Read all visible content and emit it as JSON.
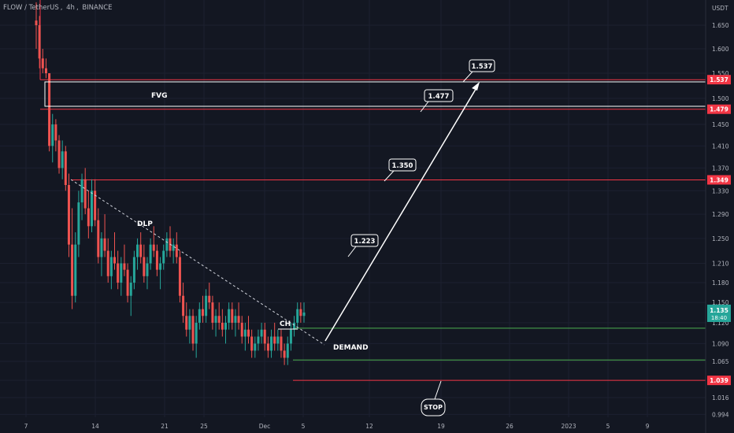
{
  "header": {
    "pair": "FLOW / TetherUS",
    "interval": "4h",
    "exchange": "BINANCE",
    "currency": "USDT"
  },
  "colors": {
    "background": "#131722",
    "up": "#26a69a",
    "down": "#ef5350",
    "grid": "#1c2030",
    "axis_text": "#b2b5be",
    "level_red": "#f23645",
    "level_green": "#4caf50",
    "drawing": "#ffffff"
  },
  "chart_data": {
    "type": "candlestick",
    "title": "FLOW / TetherUS, 4h, BINANCE",
    "y_axis_unit": "USDT",
    "y_scale": "log",
    "ylim": [
      0.994,
      1.69
    ],
    "y_ticks": [
      "1.650",
      "1.600",
      "1.550",
      "1.500",
      "1.450",
      "1.410",
      "1.370",
      "1.330",
      "1.290",
      "1.250",
      "1.210",
      "1.180",
      "1.150",
      "1.120",
      "1.090",
      "1.065",
      "1.039",
      "1.016",
      "0.994"
    ],
    "x_ticks": [
      "7",
      "14",
      "21",
      "25",
      "Dec",
      "5",
      "12",
      "19",
      "26",
      "2023",
      "5",
      "9"
    ],
    "price_tags": [
      {
        "label": "1.537",
        "value": 1.537,
        "color": "#f23645"
      },
      {
        "label": "1.479",
        "value": 1.479,
        "color": "#f23645"
      },
      {
        "label": "1.349",
        "value": 1.349,
        "color": "#f23645"
      },
      {
        "label": "1.039",
        "value": 1.039,
        "color": "#f23645"
      }
    ],
    "current_price": {
      "label": "1.135",
      "countdown": "18:40"
    },
    "levels": [
      {
        "name": "target-1.537",
        "value": 1.537,
        "color": "#f23645"
      },
      {
        "name": "target-1.479",
        "value": 1.479,
        "color": "#f23645"
      },
      {
        "name": "target-1.349",
        "value": 1.349,
        "color": "#f23645"
      },
      {
        "name": "demand-top",
        "value": 1.112,
        "color": "#4caf50"
      },
      {
        "name": "demand-bottom",
        "value": 1.067,
        "color": "#4caf50"
      },
      {
        "name": "stop",
        "value": 1.039,
        "color": "#f23645"
      }
    ],
    "annotations": {
      "fvg": "FVG",
      "dlp": "DLP",
      "ch": "CH",
      "demand": "DEMAND",
      "stop": "STOP",
      "callouts": [
        "1.537",
        "1.477",
        "1.350",
        "1.223"
      ]
    },
    "candles_note": "",
    "candles": [
      [
        1.66,
        1.7,
        1.6,
        1.65
      ],
      [
        1.65,
        1.67,
        1.56,
        1.58
      ],
      [
        1.58,
        1.6,
        1.55,
        1.56
      ],
      [
        1.56,
        1.58,
        1.54,
        1.55
      ],
      [
        1.55,
        1.55,
        1.4,
        1.41
      ],
      [
        1.41,
        1.47,
        1.38,
        1.45
      ],
      [
        1.45,
        1.46,
        1.4,
        1.42
      ],
      [
        1.42,
        1.43,
        1.36,
        1.37
      ],
      [
        1.37,
        1.42,
        1.35,
        1.4
      ],
      [
        1.4,
        1.41,
        1.33,
        1.34
      ],
      [
        1.34,
        1.36,
        1.22,
        1.24
      ],
      [
        1.24,
        1.3,
        1.14,
        1.16
      ],
      [
        1.16,
        1.26,
        1.15,
        1.24
      ],
      [
        1.24,
        1.33,
        1.22,
        1.31
      ],
      [
        1.31,
        1.36,
        1.28,
        1.35
      ],
      [
        1.35,
        1.37,
        1.29,
        1.3
      ],
      [
        1.3,
        1.33,
        1.25,
        1.27
      ],
      [
        1.27,
        1.35,
        1.26,
        1.33
      ],
      [
        1.33,
        1.35,
        1.27,
        1.28
      ],
      [
        1.28,
        1.3,
        1.21,
        1.22
      ],
      [
        1.22,
        1.26,
        1.19,
        1.25
      ],
      [
        1.25,
        1.29,
        1.22,
        1.23
      ],
      [
        1.23,
        1.25,
        1.18,
        1.19
      ],
      [
        1.19,
        1.23,
        1.17,
        1.22
      ],
      [
        1.22,
        1.26,
        1.2,
        1.21
      ],
      [
        1.21,
        1.23,
        1.17,
        1.18
      ],
      [
        1.18,
        1.22,
        1.16,
        1.21
      ],
      [
        1.21,
        1.24,
        1.19,
        1.2
      ],
      [
        1.2,
        1.21,
        1.15,
        1.16
      ],
      [
        1.16,
        1.19,
        1.13,
        1.18
      ],
      [
        1.18,
        1.23,
        1.17,
        1.22
      ],
      [
        1.22,
        1.25,
        1.2,
        1.24
      ],
      [
        1.24,
        1.26,
        1.21,
        1.22
      ],
      [
        1.22,
        1.24,
        1.18,
        1.19
      ],
      [
        1.19,
        1.22,
        1.17,
        1.21
      ],
      [
        1.21,
        1.25,
        1.2,
        1.24
      ],
      [
        1.24,
        1.27,
        1.22,
        1.23
      ],
      [
        1.23,
        1.24,
        1.19,
        1.2
      ],
      [
        1.2,
        1.22,
        1.17,
        1.21
      ],
      [
        1.21,
        1.24,
        1.2,
        1.23
      ],
      [
        1.23,
        1.26,
        1.22,
        1.25
      ],
      [
        1.25,
        1.27,
        1.22,
        1.23
      ],
      [
        1.23,
        1.25,
        1.21,
        1.24
      ],
      [
        1.24,
        1.26,
        1.21,
        1.22
      ],
      [
        1.22,
        1.23,
        1.15,
        1.16
      ],
      [
        1.16,
        1.18,
        1.12,
        1.13
      ],
      [
        1.13,
        1.15,
        1.1,
        1.11
      ],
      [
        1.11,
        1.14,
        1.09,
        1.13
      ],
      [
        1.13,
        1.14,
        1.08,
        1.09
      ],
      [
        1.09,
        1.13,
        1.07,
        1.12
      ],
      [
        1.12,
        1.15,
        1.11,
        1.14
      ],
      [
        1.14,
        1.16,
        1.12,
        1.13
      ],
      [
        1.13,
        1.17,
        1.12,
        1.16
      ],
      [
        1.16,
        1.18,
        1.14,
        1.15
      ],
      [
        1.15,
        1.16,
        1.11,
        1.12
      ],
      [
        1.12,
        1.14,
        1.1,
        1.13
      ],
      [
        1.13,
        1.15,
        1.11,
        1.12
      ],
      [
        1.12,
        1.14,
        1.1,
        1.11
      ],
      [
        1.11,
        1.13,
        1.09,
        1.12
      ],
      [
        1.12,
        1.15,
        1.11,
        1.14
      ],
      [
        1.14,
        1.15,
        1.11,
        1.12
      ],
      [
        1.12,
        1.14,
        1.1,
        1.13
      ],
      [
        1.13,
        1.15,
        1.11,
        1.12
      ],
      [
        1.12,
        1.13,
        1.09,
        1.1
      ],
      [
        1.1,
        1.12,
        1.08,
        1.11
      ],
      [
        1.11,
        1.13,
        1.09,
        1.1
      ],
      [
        1.1,
        1.11,
        1.07,
        1.08
      ],
      [
        1.08,
        1.1,
        1.07,
        1.09
      ],
      [
        1.09,
        1.11,
        1.08,
        1.1
      ],
      [
        1.1,
        1.12,
        1.09,
        1.11
      ],
      [
        1.11,
        1.12,
        1.08,
        1.09
      ],
      [
        1.09,
        1.1,
        1.07,
        1.08
      ],
      [
        1.08,
        1.11,
        1.07,
        1.1
      ],
      [
        1.1,
        1.12,
        1.08,
        1.09
      ],
      [
        1.09,
        1.11,
        1.08,
        1.1
      ],
      [
        1.1,
        1.11,
        1.07,
        1.08
      ],
      [
        1.08,
        1.09,
        1.06,
        1.07
      ],
      [
        1.07,
        1.1,
        1.06,
        1.09
      ],
      [
        1.09,
        1.12,
        1.08,
        1.11
      ],
      [
        1.11,
        1.13,
        1.1,
        1.12
      ],
      [
        1.12,
        1.15,
        1.11,
        1.14
      ],
      [
        1.14,
        1.15,
        1.12,
        1.13
      ],
      [
        1.13,
        1.15,
        1.12,
        1.135
      ]
    ]
  }
}
